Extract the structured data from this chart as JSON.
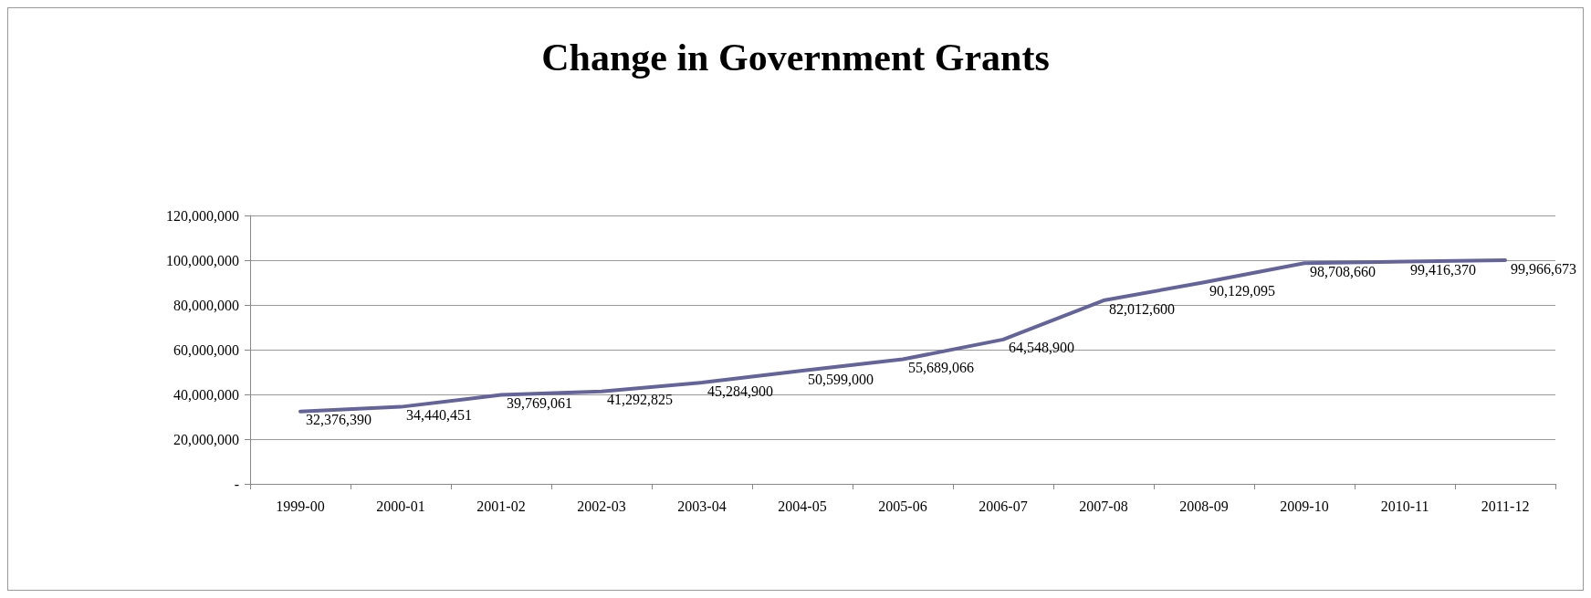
{
  "chart_data": {
    "type": "line",
    "title": "Change in Government Grants",
    "categories": [
      "1999-00",
      "2000-01",
      "2001-02",
      "2002-03",
      "2003-04",
      "2004-05",
      "2005-06",
      "2006-07",
      "2007-08",
      "2008-09",
      "2009-10",
      "2010-11",
      "2011-12"
    ],
    "values": [
      32376390,
      34440451,
      39769061,
      41292825,
      45284900,
      50599000,
      55689066,
      64548900,
      82012600,
      90129095,
      98708660,
      99416370,
      99966673
    ],
    "value_labels": [
      "32,376,390",
      "34,440,451",
      "39,769,061",
      "41,292,825",
      "45,284,900",
      "50,599,000",
      "55,689,066",
      "64,548,900",
      "82,012,600",
      "90,129,095",
      "98,708,660",
      "99,416,370",
      "99,966,673"
    ],
    "color": "#65649a",
    "ylim": [
      0,
      120000000
    ],
    "yticks": [
      {
        "value": 0,
        "label": "-"
      },
      {
        "value": 20000000,
        "label": "20,000,000"
      },
      {
        "value": 40000000,
        "label": "40,000,000"
      },
      {
        "value": 60000000,
        "label": "60,000,000"
      },
      {
        "value": 80000000,
        "label": "80,000,000"
      },
      {
        "value": 100000000,
        "label": "100,000,000"
      },
      {
        "value": 120000000,
        "label": "120,000,000"
      }
    ],
    "grid": "y",
    "marker": "none",
    "line_style": "solid"
  }
}
